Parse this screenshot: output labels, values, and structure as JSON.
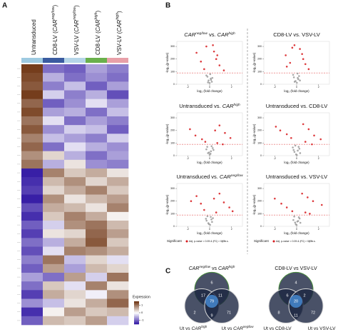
{
  "panels": [
    "A",
    "B",
    "C"
  ],
  "chart_data": [
    {
      "type": "heatmap",
      "columns": [
        [
          {
            "t": "Untransduced"
          }
        ],
        [
          {
            "t": "CD8-LV ("
          },
          {
            "t": "CAR",
            "i": true
          },
          {
            "t": "neg/low",
            "i": true,
            "sup": true
          },
          {
            "t": ")"
          }
        ],
        [
          {
            "t": "VSV-LV ("
          },
          {
            "t": "CAR",
            "i": true
          },
          {
            "t": "neg/low",
            "i": true,
            "sup": true
          },
          {
            "t": ")"
          }
        ],
        [
          {
            "t": "CD8-LV ("
          },
          {
            "t": "CAR",
            "i": true
          },
          {
            "t": "high",
            "i": true,
            "sup": true
          },
          {
            "t": ")"
          }
        ],
        [
          {
            "t": "VSV-LV ("
          },
          {
            "t": "CAR",
            "i": true
          },
          {
            "t": "high",
            "i": true,
            "sup": true
          },
          {
            "t": ")"
          }
        ]
      ],
      "column_colors": [
        "#9ecae1",
        "#3a5ba0",
        "#b5d5e8",
        "#6ab04c",
        "#e8a0a8"
      ],
      "colorscale": [
        "#2a0fa0",
        "#ffffff",
        "#6b2f0c"
      ],
      "zlim": [
        -1.5,
        1.5
      ],
      "zticks": [
        -1,
        0,
        1
      ],
      "legend_title": "Expression",
      "rows": [
        [
          1.4,
          -0.9,
          -1.0,
          -0.6,
          -0.8
        ],
        [
          1.3,
          -0.5,
          -0.9,
          -0.7,
          -0.9
        ],
        [
          1.2,
          -0.8,
          -0.4,
          -1.0,
          -0.6
        ],
        [
          1.4,
          -0.3,
          -0.8,
          -0.5,
          -1.1
        ],
        [
          1.1,
          -1.0,
          -0.7,
          -0.2,
          -0.6
        ],
        [
          1.3,
          -0.6,
          -0.5,
          -0.9,
          -0.4
        ],
        [
          1.0,
          -0.2,
          -0.9,
          -0.6,
          -0.8
        ],
        [
          1.2,
          -0.7,
          -0.3,
          -0.4,
          -1.0
        ],
        [
          0.9,
          -0.4,
          -0.6,
          -0.8,
          -0.3
        ],
        [
          1.1,
          -0.9,
          -0.2,
          -0.5,
          -0.7
        ],
        [
          0.8,
          0.3,
          -0.5,
          -0.9,
          -0.6
        ],
        [
          1.0,
          -0.5,
          0.2,
          -0.7,
          -0.8
        ],
        [
          -1.4,
          0.9,
          0.4,
          0.6,
          0.2
        ],
        [
          -1.3,
          0.5,
          0.8,
          0.3,
          0.6
        ],
        [
          -1.2,
          0.3,
          0.6,
          0.9,
          0.4
        ],
        [
          -1.4,
          0.8,
          0.2,
          0.5,
          0.7
        ],
        [
          -1.1,
          0.6,
          0.5,
          0.2,
          0.9
        ],
        [
          -1.3,
          0.4,
          0.9,
          0.6,
          0.1
        ],
        [
          -1.0,
          -0.3,
          0.8,
          1.0,
          0.5
        ],
        [
          -1.2,
          0.2,
          0.3,
          1.1,
          0.7
        ],
        [
          -0.9,
          -0.5,
          0.6,
          1.2,
          0.4
        ],
        [
          -1.1,
          -0.2,
          0.9,
          0.8,
          0.6
        ],
        [
          -0.8,
          1.0,
          -0.4,
          0.3,
          -0.2
        ],
        [
          -1.0,
          0.7,
          -0.6,
          0.5,
          0.3
        ],
        [
          -0.6,
          -0.9,
          0.7,
          -0.3,
          1.0
        ],
        [
          -0.9,
          0.4,
          -0.2,
          0.9,
          0.2
        ],
        [
          -1.2,
          0.6,
          0.3,
          -0.1,
          0.8
        ],
        [
          -0.7,
          -0.4,
          0.2,
          0.6,
          1.1
        ],
        [
          -1.3,
          0.1,
          0.7,
          0.4,
          0.5
        ],
        [
          -1.0,
          0.5,
          0.4,
          0.7,
          -0.3
        ]
      ]
    },
    {
      "type": "volcano",
      "title": [
        {
          "t": "CAR",
          "i": true
        },
        {
          "t": "neg/low",
          "i": true,
          "sup": true
        },
        {
          "t": " vs. "
        },
        {
          "t": "CAR",
          "i": true
        },
        {
          "t": "high",
          "i": true,
          "sup": true
        }
      ],
      "x_label": "log₂ (fold change)",
      "y_label": "-log₁₀(p-value)",
      "xlim": [
        -3,
        3
      ],
      "ylim": [
        0,
        340
      ],
      "xticks": [
        -2,
        0,
        2
      ],
      "yticks": [
        0,
        100,
        200,
        300
      ],
      "hline": 90,
      "series": [
        {
          "color": "#d7191c",
          "x": [
            -1.2,
            -0.8,
            -0.5,
            0.4,
            0.6,
            0.9,
            1.3,
            -0.3,
            0.3,
            0.7
          ],
          "values": [
            250,
            180,
            120,
            260,
            200,
            150,
            110,
            300,
            310,
            230
          ]
        },
        {
          "color": "#9a9a9a",
          "x": [
            -0.2,
            -0.1,
            0,
            0.1,
            0.2,
            -0.3,
            0.25,
            -0.15,
            0.05,
            0.12
          ],
          "values": [
            60,
            30,
            10,
            45,
            20,
            70,
            50,
            15,
            80,
            35
          ]
        }
      ]
    },
    {
      "type": "volcano",
      "title": [
        {
          "t": "CD8-LV vs. VSV-LV"
        }
      ],
      "x_label": "log₂ (fold change)",
      "y_label": "-log₁₀(p-value)",
      "xlim": [
        -3,
        3
      ],
      "ylim": [
        0,
        340
      ],
      "xticks": [
        -2,
        0,
        2
      ],
      "yticks": [
        0,
        100,
        200,
        300
      ],
      "hline": 90,
      "series": [
        {
          "color": "#d7191c",
          "x": [
            -1.0,
            -0.6,
            -0.4,
            0.5,
            0.8,
            1.1,
            -0.2,
            0.3,
            0.6,
            -0.9
          ],
          "values": [
            230,
            170,
            290,
            240,
            160,
            120,
            310,
            280,
            200,
            140
          ]
        },
        {
          "color": "#9a9a9a",
          "x": [
            -0.25,
            -0.1,
            0.02,
            0.15,
            0.22,
            -0.32,
            0.3,
            -0.18,
            0.08,
            0.1
          ],
          "values": [
            55,
            25,
            12,
            40,
            65,
            75,
            30,
            20,
            85,
            50
          ]
        }
      ]
    },
    {
      "type": "volcano",
      "title": [
        {
          "t": "Untransduced vs. "
        },
        {
          "t": "CAR",
          "i": true
        },
        {
          "t": "high",
          "i": true,
          "sup": true
        }
      ],
      "x_label": "log₂ (fold change)",
      "y_label": "-log₁₀(p-value)",
      "xlim": [
        -3,
        3
      ],
      "ylim": [
        0,
        340
      ],
      "xticks": [
        -2,
        0,
        2
      ],
      "yticks": [
        0,
        100,
        200,
        300
      ],
      "hline": 90,
      "series": [
        {
          "color": "#d7191c",
          "x": [
            -1.8,
            -1.3,
            -0.7,
            0.5,
            0.9,
            1.4,
            1.9,
            0.7,
            1.2,
            -0.4
          ],
          "values": [
            210,
            160,
            130,
            200,
            240,
            180,
            140,
            100,
            90,
            110
          ]
        },
        {
          "color": "#9a9a9a",
          "x": [
            -0.3,
            -0.15,
            0,
            0.12,
            0.28,
            -0.22,
            0.35,
            -0.05,
            0.18,
            0.08
          ],
          "values": [
            50,
            20,
            8,
            35,
            60,
            70,
            45,
            25,
            75,
            15
          ]
        }
      ]
    },
    {
      "type": "volcano",
      "title": [
        {
          "t": "Untransduced vs. CD8-LV"
        }
      ],
      "x_label": "log₂ (fold change)",
      "y_label": "-log₁₀(p-value)",
      "xlim": [
        -3,
        3
      ],
      "ylim": [
        0,
        340
      ],
      "xticks": [
        -2,
        0,
        2
      ],
      "yticks": [
        0,
        100,
        200,
        300
      ],
      "hline": 90,
      "series": [
        {
          "color": "#d7191c",
          "x": [
            -1.9,
            -1.5,
            -0.9,
            -0.5,
            0.6,
            1.1,
            1.6,
            2.2,
            0.8,
            1.4
          ],
          "values": [
            230,
            200,
            170,
            140,
            250,
            210,
            160,
            130,
            110,
            90
          ]
        },
        {
          "color": "#9a9a9a",
          "x": [
            -0.35,
            -0.2,
            -0.05,
            0.1,
            0.25,
            -0.12,
            0.32,
            0.02,
            0.18,
            -0.28
          ],
          "values": [
            65,
            30,
            10,
            40,
            55,
            80,
            20,
            5,
            70,
            45
          ]
        }
      ]
    },
    {
      "type": "volcano",
      "title": [
        {
          "t": "Untransduced vs. "
        },
        {
          "t": "CAR",
          "i": true
        },
        {
          "t": "neg/low",
          "i": true,
          "sup": true
        }
      ],
      "x_label": "log₂ (fold change)",
      "y_label": "-log₁₀(p-value)",
      "xlim": [
        -3,
        3
      ],
      "ylim": [
        0,
        340
      ],
      "xticks": [
        -2,
        0,
        2
      ],
      "yticks": [
        0,
        100,
        200,
        300
      ],
      "hline": 90,
      "legend_title": "Significant",
      "series": [
        {
          "name": "Adj. p-value < 0.05 & |FC| > 0.25",
          "color": "#d7191c",
          "x": [
            -1.7,
            -1.2,
            -0.8,
            0.4,
            0.9,
            1.3,
            1.8,
            2.1,
            0.6,
            -0.5
          ],
          "values": [
            200,
            240,
            180,
            220,
            260,
            190,
            150,
            120,
            110,
            130
          ]
        },
        {
          "name": "n.s.",
          "color": "#9a9a9a",
          "x": [
            -0.28,
            -0.12,
            0.04,
            0.16,
            0.3,
            -0.2,
            0.22,
            -0.06,
            0.1,
            -0.34
          ],
          "values": [
            45,
            25,
            12,
            55,
            65,
            80,
            35,
            18,
            75,
            60
          ]
        }
      ]
    },
    {
      "type": "volcano",
      "title": [
        {
          "t": "Untransduced vs. VSV-LV"
        }
      ],
      "x_label": "log₂ (fold change)",
      "y_label": "-log₁₀(p-value)",
      "xlim": [
        -3,
        3
      ],
      "ylim": [
        0,
        340
      ],
      "xticks": [
        -2,
        0,
        2
      ],
      "yticks": [
        0,
        100,
        200,
        300
      ],
      "hline": 90,
      "legend_title": "Significant",
      "series": [
        {
          "name": "Adj. p-value < 0.05 & |FC| > 0.25",
          "color": "#d7191c",
          "x": [
            -2.0,
            -1.4,
            -0.9,
            -0.4,
            0.5,
            1.0,
            1.5,
            2.3,
            0.8,
            1.2
          ],
          "values": [
            220,
            180,
            150,
            120,
            260,
            230,
            200,
            170,
            110,
            100
          ]
        },
        {
          "name": "n.s.",
          "color": "#9a9a9a",
          "x": [
            -0.3,
            -0.14,
            0.0,
            0.14,
            0.27,
            -0.22,
            0.34,
            -0.08,
            0.2,
            0.06
          ],
          "values": [
            50,
            30,
            10,
            42,
            62,
            78,
            28,
            16,
            72,
            38
          ]
        }
      ]
    },
    {
      "type": "venn",
      "sets": [
        [
          {
            "t": "CAR",
            "i": true
          },
          {
            "t": "neg/low",
            "i": true,
            "sup": true
          },
          {
            "t": " vs "
          },
          {
            "t": "CAR",
            "i": true
          },
          {
            "t": "high",
            "i": true,
            "sup": true
          }
        ],
        [
          {
            "t": "Ut vs "
          },
          {
            "t": "CAR",
            "i": true
          },
          {
            "t": "high",
            "i": true,
            "sup": true
          }
        ],
        [
          {
            "t": "Ut vs "
          },
          {
            "t": "CAR",
            "i": true
          },
          {
            "t": "neg/low",
            "i": true,
            "sup": true
          }
        ]
      ],
      "colors": [
        "#1c2541",
        "#1c2541",
        "#1c2541"
      ],
      "stroke_colors": [
        "#4a8f3c",
        "#d8d8d8",
        "#d8d8d8"
      ],
      "counts": {
        "a": 6,
        "b": 2,
        "c": 71,
        "ab": 17,
        "ac": 11,
        "bc": 9,
        "abc": 79
      }
    },
    {
      "type": "venn",
      "sets": [
        [
          {
            "t": "CD8-LV vs VSV-LV"
          }
        ],
        [
          {
            "t": "Ut vs CD8-LV"
          }
        ],
        [
          {
            "t": "Ut vs VSV-LV"
          }
        ]
      ],
      "colors": [
        "#1c2541",
        "#1c2541",
        "#1c2541"
      ],
      "stroke_colors": [
        "#4a8f3c",
        "#d8d8d8",
        "#d8d8d8"
      ],
      "counts": {
        "a": 4,
        "b": 8,
        "c": 72,
        "ab": 6,
        "ac": 2,
        "bc": 11,
        "abc": 20
      }
    }
  ]
}
